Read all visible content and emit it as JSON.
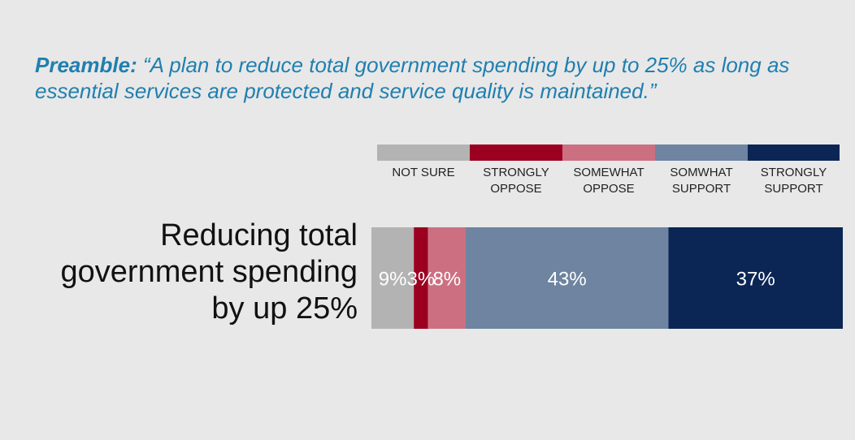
{
  "preamble": {
    "lead": "Preamble:",
    "text": "“A plan to reduce total government spending by up to 25% as long as essential services are protected and service quality is maintained.”"
  },
  "legend": [
    {
      "label": "NOT SURE",
      "color": "#b3b3b3"
    },
    {
      "label": "STRONGLY\nOPPOSE",
      "color": "#9b0020"
    },
    {
      "label": "SOMEWHAT\nOPPOSE",
      "color": "#cc7081"
    },
    {
      "label": "SOMWHAT\nSUPPORT",
      "color": "#6e84a0"
    },
    {
      "label": "STRONGLY\nSUPPORT",
      "color": "#0b2654"
    }
  ],
  "chart_data": {
    "type": "bar",
    "orientation": "horizontal-stacked",
    "categories": [
      "Reducing total government spending by up 25%"
    ],
    "series": [
      {
        "name": "NOT SURE",
        "values": [
          9
        ],
        "label": "9%"
      },
      {
        "name": "STRONGLY OPPOSE",
        "values": [
          3
        ],
        "label": "3%"
      },
      {
        "name": "SOMEWHAT OPPOSE",
        "values": [
          8
        ],
        "label": "8%"
      },
      {
        "name": "SOMWHAT SUPPORT",
        "values": [
          43
        ],
        "label": "43%"
      },
      {
        "name": "STRONGLY SUPPORT",
        "values": [
          37
        ],
        "label": "37%"
      }
    ],
    "xlim": [
      0,
      100
    ],
    "legend_position": "top"
  }
}
